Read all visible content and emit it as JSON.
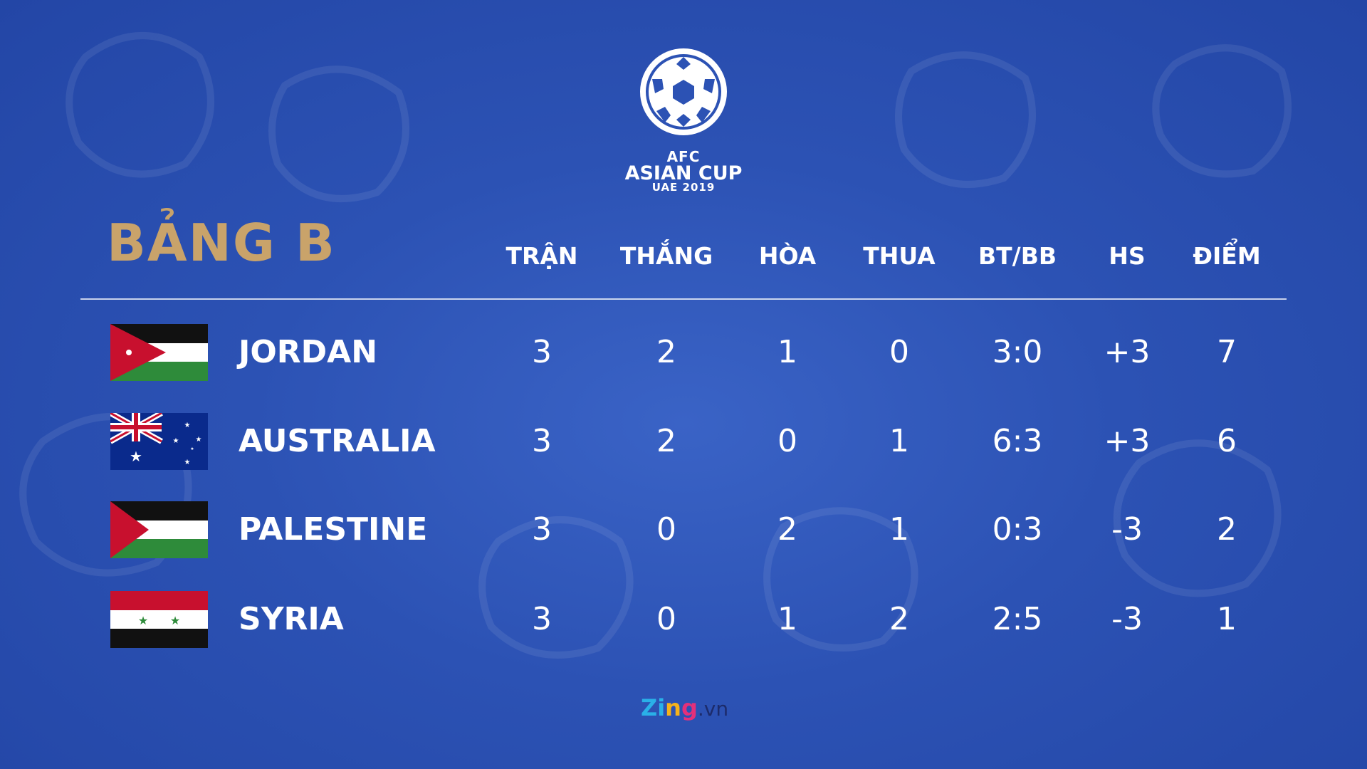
{
  "logo": {
    "line1": "AFC",
    "line2": "ASIAN CUP",
    "line3": "UAE 2019"
  },
  "group_title": "BẢNG B",
  "headers": [
    "TRẬN",
    "THẮNG",
    "HÒA",
    "THUA",
    "BT/BB",
    "HS",
    "ĐIỂM"
  ],
  "rows": [
    {
      "team": "JORDAN",
      "flag": "jordan-flag",
      "values": [
        "3",
        "2",
        "1",
        "0",
        "3:0",
        "+3",
        "7"
      ]
    },
    {
      "team": "AUSTRALIA",
      "flag": "australia-flag",
      "values": [
        "3",
        "2",
        "0",
        "1",
        "6:3",
        "+3",
        "6"
      ]
    },
    {
      "team": "PALESTINE",
      "flag": "palestine-flag",
      "values": [
        "3",
        "0",
        "2",
        "1",
        "0:3",
        "-3",
        "2"
      ]
    },
    {
      "team": "SYRIA",
      "flag": "syria-flag",
      "values": [
        "3",
        "0",
        "1",
        "2",
        "2:5",
        "-3",
        "1"
      ]
    }
  ],
  "footer": {
    "z1": "Zi",
    "z2": "n",
    "z3": "g",
    "vn": ".vn"
  },
  "colors": {
    "background": "#2c52b4",
    "title_gold": "#c9a36a",
    "text": "#ffffff"
  }
}
